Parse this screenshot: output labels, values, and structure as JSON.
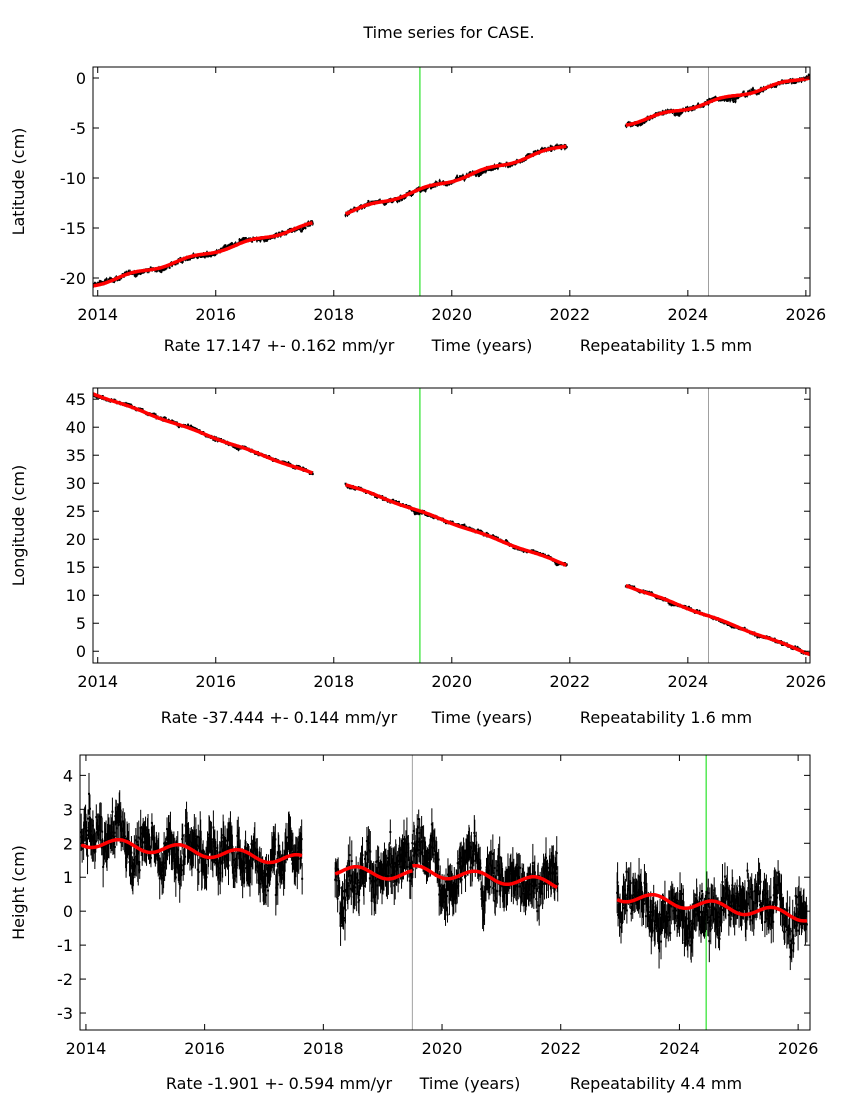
{
  "chart_data": {
    "type": "scatter",
    "title": "Time series for CASE.",
    "colors": {
      "data": "#000000",
      "fit": "#ff0000",
      "event_green": "#00dd00",
      "event_gray": "#a0a0a0"
    },
    "panels": [
      {
        "ylabel": "Latitude (cm)",
        "xlabel": "Time (years)",
        "rate_text": "Rate 17.147 +- 0.162 mm/yr",
        "repeatability_text": "Repeatability 1.5 mm",
        "xlim": [
          2013.92,
          2026.07
        ],
        "ylim": [
          -21.8,
          1.1
        ],
        "xticks": [
          2014,
          2016,
          2018,
          2020,
          2022,
          2024,
          2026
        ],
        "yticks": [
          0,
          -5,
          -10,
          -15,
          -20
        ],
        "event_lines": [
          {
            "x": 2019.46,
            "color": "green"
          },
          {
            "x": 2024.35,
            "color": "gray"
          }
        ],
        "scatter_cm": 0.15,
        "seasonal_amp_cm": 0.15,
        "segments": [
          {
            "start": 2013.92,
            "end": 2017.65,
            "y_start": -20.7,
            "y_end": -14.6
          },
          {
            "start": 2018.2,
            "end": 2021.95,
            "y_start": -13.5,
            "y_end": -6.7
          },
          {
            "start": 2022.95,
            "end": 2026.1,
            "y_start": -4.6,
            "y_end": 0.2
          }
        ]
      },
      {
        "ylabel": "Longitude (cm)",
        "xlabel": "Time (years)",
        "rate_text": "Rate -37.444 +- 0.144 mm/yr",
        "repeatability_text": "Repeatability 1.6 mm",
        "xlim": [
          2013.92,
          2026.07
        ],
        "ylim": [
          -2.1,
          47.0
        ],
        "xticks": [
          2014,
          2016,
          2018,
          2020,
          2022,
          2024,
          2026
        ],
        "yticks": [
          45,
          40,
          35,
          30,
          25,
          20,
          15,
          10,
          5,
          0
        ],
        "event_lines": [
          {
            "x": 2019.46,
            "color": "green"
          },
          {
            "x": 2024.35,
            "color": "gray"
          }
        ],
        "scatter_cm": 0.2,
        "seasonal_amp_cm": 0.1,
        "segments": [
          {
            "start": 2013.92,
            "end": 2017.65,
            "y_start": 46.0,
            "y_end": 31.7
          },
          {
            "start": 2018.2,
            "end": 2021.95,
            "y_start": 29.8,
            "y_end": 15.4
          },
          {
            "start": 2022.95,
            "end": 2026.1,
            "y_start": 11.8,
            "y_end": -0.6
          }
        ]
      },
      {
        "ylabel": "Height (cm)",
        "xlabel": "Time (years)",
        "rate_text": "Rate -1.901 +- 0.594 mm/yr",
        "repeatability_text": "Repeatability 4.4 mm",
        "xlim": [
          2013.9,
          2026.2
        ],
        "ylim": [
          -3.5,
          4.6
        ],
        "xticks": [
          2014,
          2016,
          2018,
          2020,
          2022,
          2024,
          2026
        ],
        "yticks": [
          4,
          3,
          2,
          1,
          0,
          -1,
          -2,
          -3
        ],
        "event_lines": [
          {
            "x": 2019.5,
            "color": "gray"
          },
          {
            "x": 2024.45,
            "color": "green"
          }
        ],
        "scatter_cm": 0.45,
        "seasonal_amp_cm": 0.15,
        "segments": [
          {
            "start": 2013.92,
            "end": 2017.65,
            "y_start": 2.05,
            "y_end": 1.5
          },
          {
            "start": 2018.2,
            "end": 2019.5,
            "y_start": 1.2,
            "y_end": 1.05
          },
          {
            "start": 2019.5,
            "end": 2021.95,
            "y_start": 1.2,
            "y_end": 0.8
          },
          {
            "start": 2022.95,
            "end": 2026.15,
            "y_start": 0.45,
            "y_end": -0.15
          }
        ]
      }
    ]
  }
}
